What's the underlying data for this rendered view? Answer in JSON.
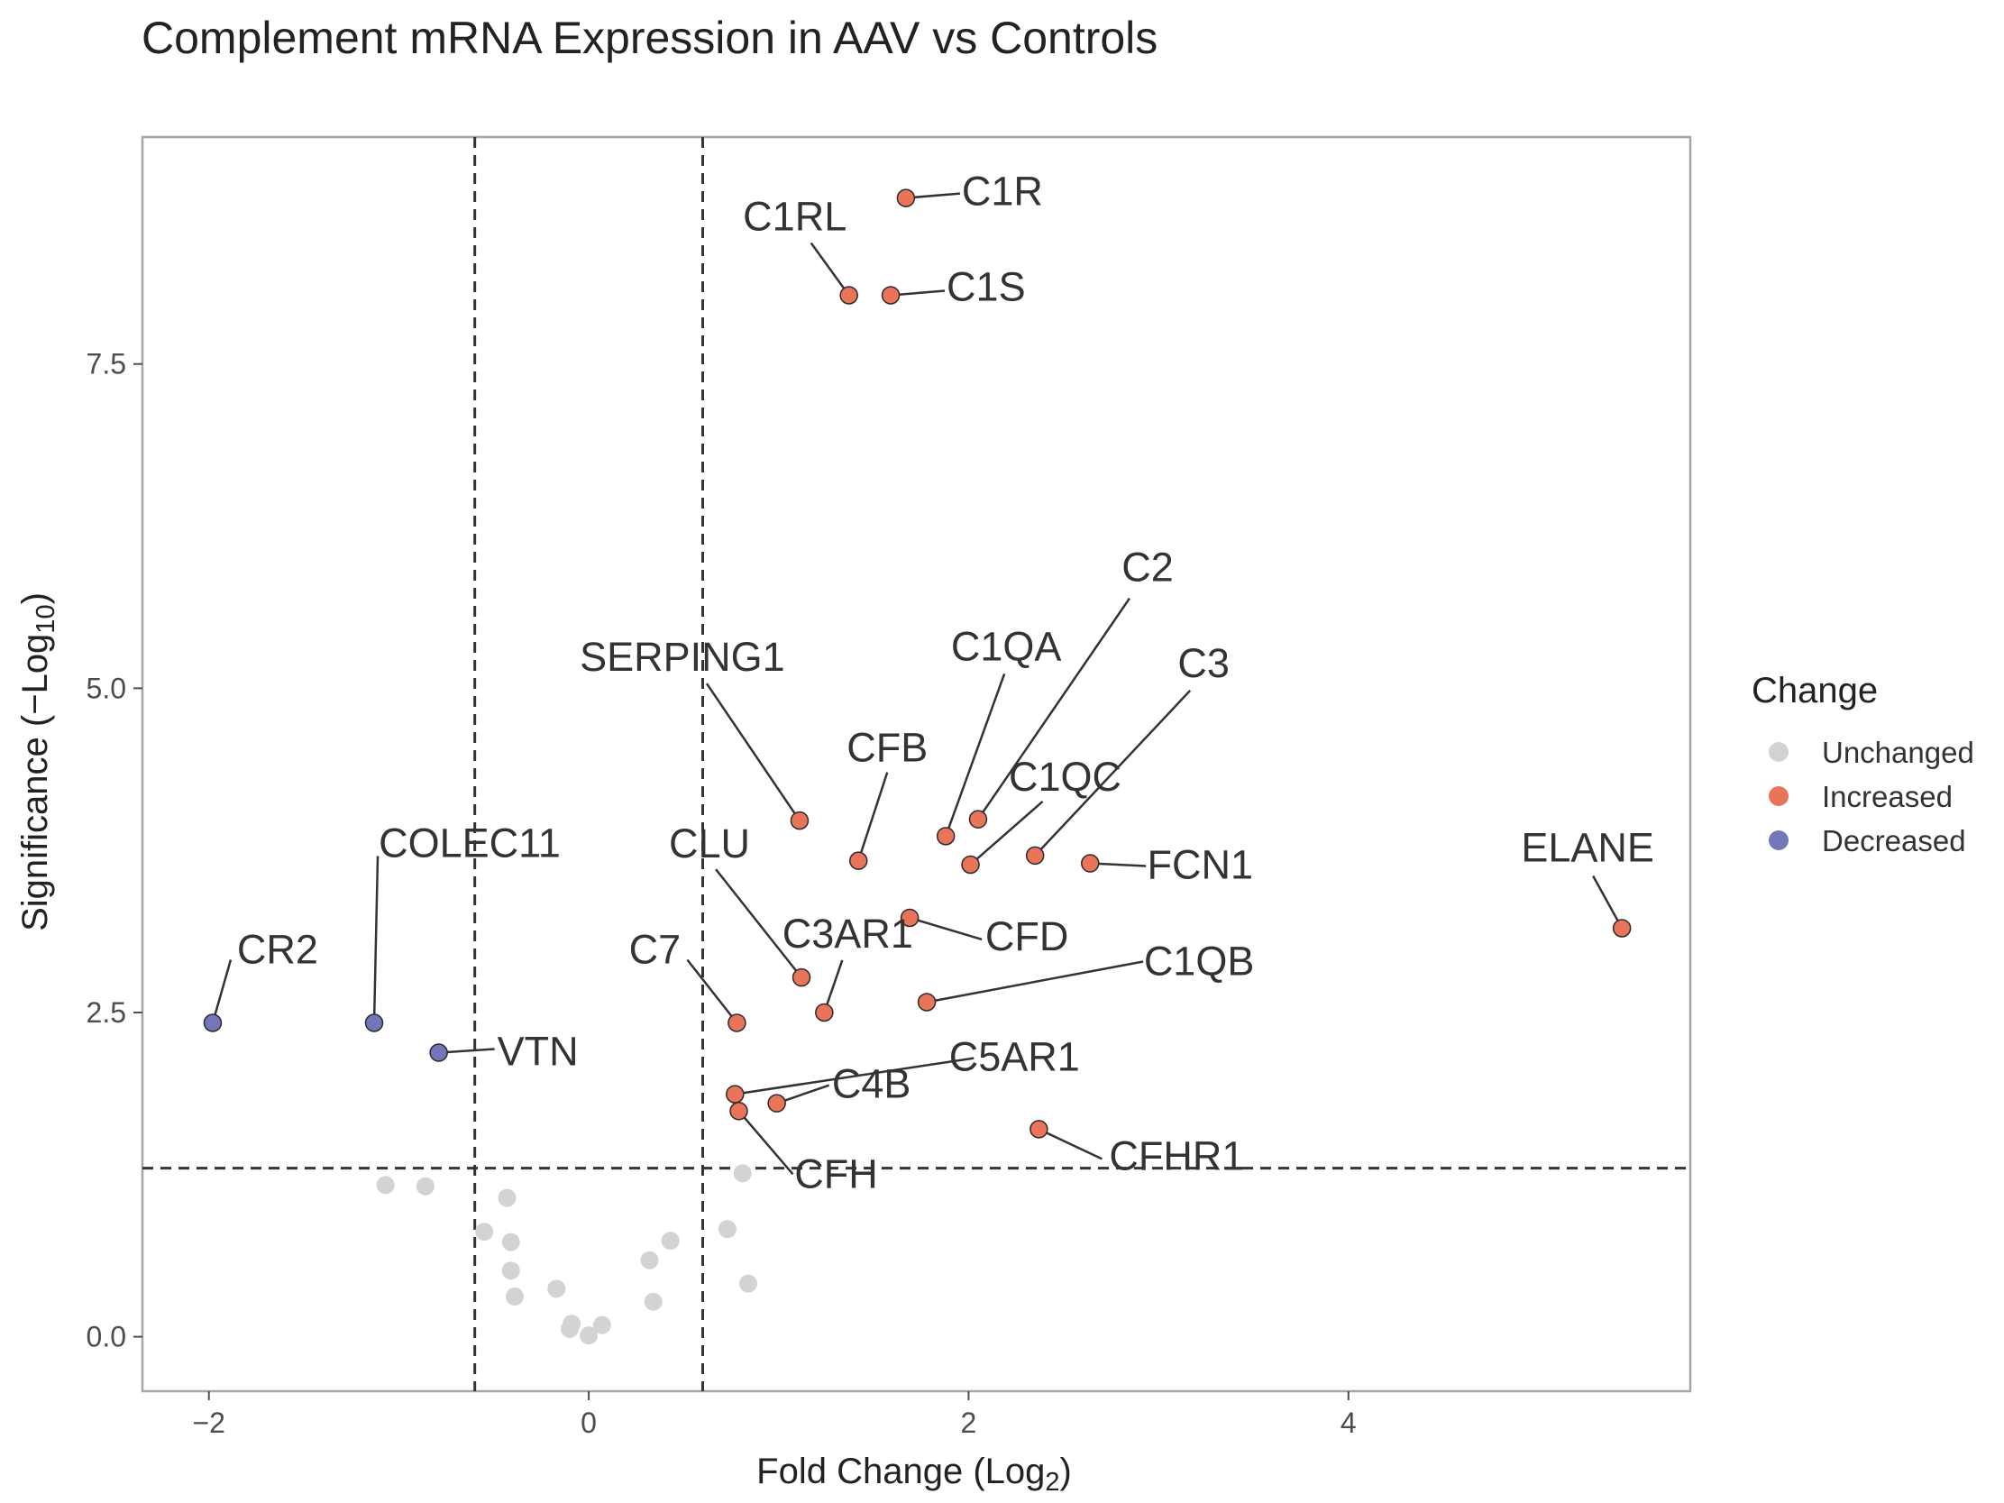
{
  "chart_data": {
    "type": "scatter",
    "title": "Complement mRNA Expression in AAV vs Controls",
    "xlabel": {
      "text": "Fold Change (Log",
      "sub": "2",
      "close": ")"
    },
    "ylabel": {
      "text": "Significance (−Log",
      "sub": "10",
      "close": ")"
    },
    "xlim": [
      -2.35,
      5.8
    ],
    "ylim": [
      -0.42,
      9.25
    ],
    "x_ticks": [
      -2,
      0,
      2,
      4
    ],
    "x_tick_labels": [
      "−2",
      "0",
      "2",
      "4"
    ],
    "y_ticks": [
      0.0,
      2.5,
      5.0,
      7.5
    ],
    "y_tick_labels": [
      "0.0",
      "2.5",
      "5.0",
      "7.5"
    ],
    "thresholds": {
      "fold_change": [
        -0.6,
        0.6
      ],
      "significance": 1.3
    },
    "grid": false,
    "legend": {
      "title": "Change",
      "position": "right",
      "entries": [
        {
          "label": "Unchanged",
          "color": "#d3d3d3"
        },
        {
          "label": "Increased",
          "color": "#e8745a"
        },
        {
          "label": "Decreased",
          "color": "#7376b8"
        }
      ]
    },
    "labeled_points": [
      {
        "gene": "C1R",
        "x": 1.67,
        "y": 8.78,
        "change": "Increased"
      },
      {
        "gene": "C1RL",
        "x": 1.37,
        "y": 8.03,
        "change": "Increased"
      },
      {
        "gene": "C1S",
        "x": 1.59,
        "y": 8.03,
        "change": "Increased"
      },
      {
        "gene": "SERPING1",
        "x": 1.11,
        "y": 3.98,
        "change": "Increased"
      },
      {
        "gene": "CFB",
        "x": 1.42,
        "y": 3.67,
        "change": "Increased"
      },
      {
        "gene": "C1QA",
        "x": 1.88,
        "y": 3.86,
        "change": "Increased"
      },
      {
        "gene": "C2",
        "x": 2.05,
        "y": 3.99,
        "change": "Increased"
      },
      {
        "gene": "C1QC",
        "x": 2.01,
        "y": 3.64,
        "change": "Increased"
      },
      {
        "gene": "C3",
        "x": 2.35,
        "y": 3.71,
        "change": "Increased"
      },
      {
        "gene": "FCN1",
        "x": 2.64,
        "y": 3.65,
        "change": "Increased"
      },
      {
        "gene": "ELANE",
        "x": 5.44,
        "y": 3.15,
        "change": "Increased"
      },
      {
        "gene": "CFD",
        "x": 1.69,
        "y": 3.23,
        "change": "Increased"
      },
      {
        "gene": "CLU",
        "x": 1.12,
        "y": 2.77,
        "change": "Increased"
      },
      {
        "gene": "C3AR1",
        "x": 1.24,
        "y": 2.5,
        "change": "Increased"
      },
      {
        "gene": "C1QB",
        "x": 1.78,
        "y": 2.58,
        "change": "Increased"
      },
      {
        "gene": "C7",
        "x": 0.78,
        "y": 2.42,
        "change": "Increased"
      },
      {
        "gene": "C5AR1",
        "x": 0.77,
        "y": 1.87,
        "change": "Increased"
      },
      {
        "gene": "C4B",
        "x": 0.99,
        "y": 1.8,
        "change": "Increased"
      },
      {
        "gene": "CFH",
        "x": 0.79,
        "y": 1.74,
        "change": "Increased"
      },
      {
        "gene": "CFHR1",
        "x": 2.37,
        "y": 1.6,
        "change": "Increased"
      },
      {
        "gene": "CR2",
        "x": -1.98,
        "y": 2.42,
        "change": "Decreased"
      },
      {
        "gene": "COLEC11",
        "x": -1.13,
        "y": 2.42,
        "change": "Decreased"
      },
      {
        "gene": "VTN",
        "x": -0.79,
        "y": 2.19,
        "change": "Decreased"
      }
    ],
    "unchanged_points": [
      {
        "x": -1.07,
        "y": 1.17
      },
      {
        "x": -0.86,
        "y": 1.16
      },
      {
        "x": -0.43,
        "y": 1.07
      },
      {
        "x": -0.55,
        "y": 0.81
      },
      {
        "x": -0.41,
        "y": 0.73
      },
      {
        "x": -0.41,
        "y": 0.51
      },
      {
        "x": -0.39,
        "y": 0.31
      },
      {
        "x": -0.17,
        "y": 0.37
      },
      {
        "x": -0.09,
        "y": 0.1
      },
      {
        "x": -0.1,
        "y": 0.06
      },
      {
        "x": 0.0,
        "y": 0.01
      },
      {
        "x": 0.07,
        "y": 0.09
      },
      {
        "x": 0.32,
        "y": 0.59
      },
      {
        "x": 0.34,
        "y": 0.27
      },
      {
        "x": 0.43,
        "y": 0.74
      },
      {
        "x": 0.73,
        "y": 0.83
      },
      {
        "x": 0.81,
        "y": 1.26
      },
      {
        "x": 0.84,
        "y": 0.41
      }
    ]
  }
}
